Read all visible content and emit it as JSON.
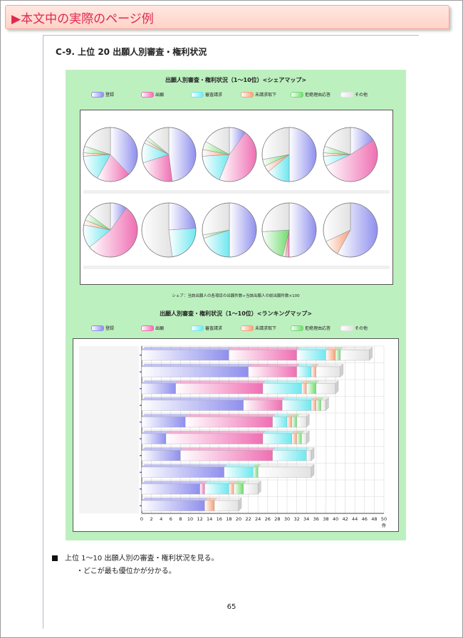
{
  "banner": {
    "title": "▶本文中の実際のページ例"
  },
  "section": {
    "title": "C-9.  上位 20 出願人別審査・権利状況"
  },
  "legend_items": [
    {
      "label": "登録",
      "color": "#8f8fee"
    },
    {
      "label": "出願",
      "color": "#ef6fb3"
    },
    {
      "label": "審査請求",
      "color": "#6fe8f0"
    },
    {
      "label": "未請求取下",
      "color": "#f5a07a"
    },
    {
      "label": "拒絶理由応答",
      "color": "#6fdc6f"
    },
    {
      "label": "その他",
      "color": "#e2e2e2"
    }
  ],
  "chart_data": [
    {
      "type": "pie",
      "title": "出願人別審査・権利状況（1～10位）<シェアマップ>",
      "series_labels": [
        "登録",
        "出願",
        "審査請求",
        "未請求取下",
        "拒絶理由応答",
        "その他"
      ],
      "pies": [
        [
          0.38,
          0.2,
          0.16,
          0.02,
          0.04,
          0.2
        ],
        [
          0.48,
          0.22,
          0.12,
          0.02,
          0.02,
          0.14
        ],
        [
          0.1,
          0.46,
          0.18,
          0.04,
          0.05,
          0.17
        ],
        [
          0.5,
          0.0,
          0.14,
          0.04,
          0.04,
          0.28
        ],
        [
          0.16,
          0.52,
          0.06,
          0.02,
          0.04,
          0.2
        ],
        [
          0.1,
          0.54,
          0.14,
          0.03,
          0.04,
          0.15
        ],
        [
          0.24,
          0.0,
          0.24,
          0.0,
          0.0,
          0.52
        ],
        [
          0.5,
          0.0,
          0.2,
          0.0,
          0.02,
          0.28
        ],
        [
          0.5,
          0.02,
          0.0,
          0.02,
          0.2,
          0.26
        ],
        [
          0.58,
          0.0,
          0.0,
          0.1,
          0.0,
          0.32
        ]
      ],
      "note": "シェア：当該出願人の各項目の出願件数÷当該出願人の総出願件数×100"
    },
    {
      "type": "bar",
      "stacked": true,
      "orientation": "horizontal",
      "title": "出願人別審査・権利状況（1～10位）<ランキングマップ>",
      "series": [
        {
          "name": "登録",
          "values": [
            18.0,
            22.0,
            7.0,
            21.0,
            9.0,
            5.0,
            8.0,
            17.0,
            12.0,
            13.0
          ]
        },
        {
          "name": "出願",
          "values": [
            14.0,
            10.0,
            18.0,
            8.0,
            18.0,
            20.0,
            19.0,
            0.0,
            1.0,
            0.0
          ]
        },
        {
          "name": "審査請求",
          "values": [
            6.0,
            3.0,
            8.0,
            6.0,
            3.0,
            6.0,
            7.0,
            6.0,
            5.0,
            0.0
          ]
        },
        {
          "name": "未請求取下",
          "values": [
            2.0,
            1.0,
            1.0,
            1.0,
            1.0,
            1.0,
            0.0,
            0.0,
            1.0,
            2.0
          ]
        },
        {
          "name": "拒絶理由応答",
          "values": [
            1.0,
            0.0,
            2.0,
            1.0,
            1.0,
            1.0,
            0.0,
            1.0,
            2.0,
            0.0
          ]
        },
        {
          "name": "その他",
          "values": [
            6.0,
            5.0,
            4.0,
            1.0,
            2.0,
            1.0,
            1.0,
            11.0,
            3.0,
            5.0
          ]
        }
      ],
      "x_ticks": [
        "0",
        "2",
        "4",
        "6",
        "8",
        "10",
        "12",
        "14",
        "16",
        "18",
        "20",
        "22",
        "24",
        "26",
        "28",
        "30",
        "32",
        "34",
        "36",
        "38",
        "40",
        "42",
        "44",
        "46",
        "48",
        "50"
      ],
      "xlim": [
        0,
        50
      ],
      "unit_label": "件",
      "grid": true
    }
  ],
  "body": {
    "bullet": "上位 1～10 出願人別の審査・権利状況を見る。",
    "sub": "・どこが最も優位かが分かる。"
  },
  "page_number": "65"
}
